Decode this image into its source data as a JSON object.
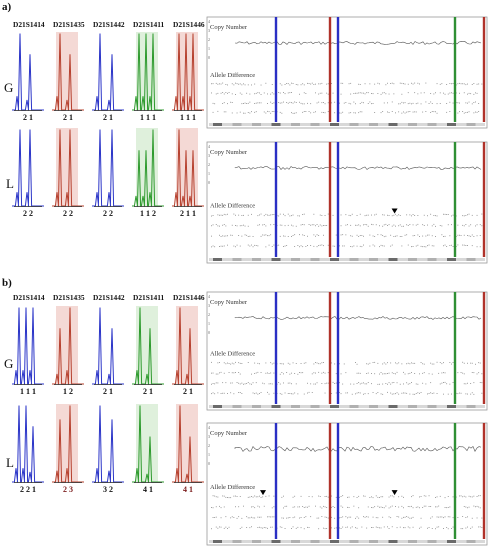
{
  "panels": [
    {
      "label": "a)",
      "markers": [
        "D21S1414",
        "D21S1435",
        "D21S1442",
        "D21S1411",
        "D21S1446"
      ],
      "rows": [
        {
          "label": "G",
          "ratios": [
            "2 1",
            "2 1",
            "2 1",
            "1 1 1",
            "1 1 1"
          ],
          "array": {
            "title": "Copy Number",
            "subtitle": "Allele Difference",
            "arrows": []
          }
        },
        {
          "label": "L",
          "ratios": [
            "2 2",
            "2 2",
            "2 2",
            "1 1 2",
            "2 1 1"
          ],
          "array": {
            "title": "Copy Number",
            "subtitle": "Allele Difference",
            "arrows": [
              0.67
            ]
          }
        }
      ]
    },
    {
      "label": "b)",
      "markers": [
        "D21S1414",
        "D21S1435",
        "D21S1442",
        "D21S1411",
        "D21S1446"
      ],
      "rows": [
        {
          "label": "G",
          "ratios": [
            "1 1 1",
            "1 2",
            "2 1",
            "2 1",
            "2 1"
          ],
          "array": {
            "title": "Copy Number",
            "subtitle": "Allele Difference",
            "arrows": []
          }
        },
        {
          "label": "L",
          "ratios": [
            "2 2 1",
            "2 3",
            "3 2",
            "4 1",
            "4 1"
          ],
          "array": {
            "title": "Copy Number",
            "subtitle": "Allele Difference",
            "arrows": [
              0.2,
              0.67
            ]
          }
        }
      ]
    }
  ],
  "colors": {
    "blue": "#2b35c8",
    "red": "#b6402e",
    "green": "#2d9a2d",
    "pinkFill": "#f4d9d5",
    "greenFill": "#dff0dc",
    "blueLine": "#2a2fc4",
    "redLine": "#b0322a",
    "greenLine": "#2f8f34"
  }
}
